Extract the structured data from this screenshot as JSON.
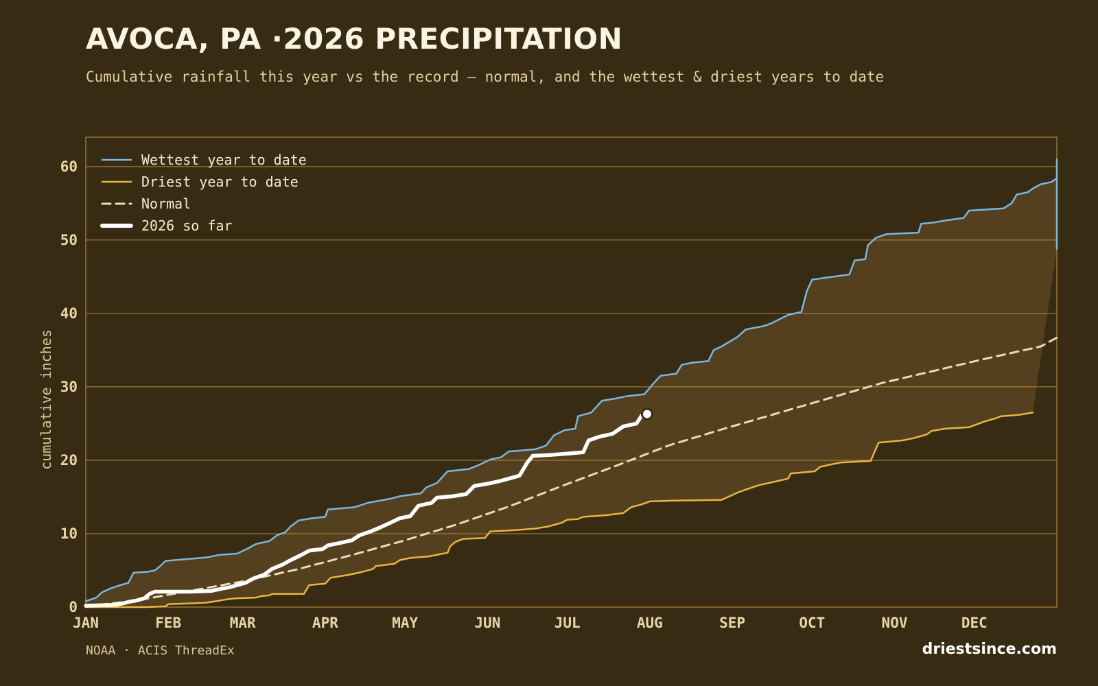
{
  "header": {
    "title": "AVOCA, PA ·2026 PRECIPITATION",
    "subtitle": "Cumulative rainfall this year vs the record — normal, and the wettest & driest years to date"
  },
  "footer": {
    "source": "NOAA · ACIS ThreadEx",
    "site": "driestsince.com"
  },
  "colors": {
    "background": "#382b13",
    "band_fill": "#55411f",
    "grid": "#c89b3c",
    "wettest": "#7ab7e0",
    "driest": "#e8b640",
    "normal": "#eadcb4",
    "current": "#ffffff"
  },
  "chart_data": {
    "type": "line",
    "ylabel": "cumulative inches",
    "xlabel": "",
    "ylim": [
      0,
      64
    ],
    "xlim_day": [
      1,
      366
    ],
    "yticks": [
      0,
      10,
      20,
      30,
      40,
      50,
      60
    ],
    "month_ticks": [
      {
        "label": "JAN",
        "day": 1
      },
      {
        "label": "FEB",
        "day": 32
      },
      {
        "label": "MAR",
        "day": 60
      },
      {
        "label": "APR",
        "day": 91
      },
      {
        "label": "MAY",
        "day": 121
      },
      {
        "label": "JUN",
        "day": 152
      },
      {
        "label": "JUL",
        "day": 182
      },
      {
        "label": "AUG",
        "day": 213
      },
      {
        "label": "SEP",
        "day": 244
      },
      {
        "label": "OCT",
        "day": 274
      },
      {
        "label": "NOV",
        "day": 305
      },
      {
        "label": "DEC",
        "day": 335
      }
    ],
    "grid": true,
    "legend_position": "top-left",
    "series": [
      {
        "name": "Wettest year to date",
        "style": "solid-thin",
        "points": [
          [
            1,
            0.8
          ],
          [
            5,
            1.3
          ],
          [
            7,
            2.0
          ],
          [
            10,
            2.5
          ],
          [
            14,
            3.0
          ],
          [
            17,
            3.3
          ],
          [
            19,
            4.7
          ],
          [
            24,
            4.8
          ],
          [
            27,
            5.0
          ],
          [
            29,
            5.6
          ],
          [
            31,
            6.3
          ],
          [
            41,
            6.6
          ],
          [
            47,
            6.8
          ],
          [
            51,
            7.1
          ],
          [
            58,
            7.3
          ],
          [
            62,
            8.0
          ],
          [
            65,
            8.6
          ],
          [
            70,
            9.0
          ],
          [
            73,
            9.8
          ],
          [
            76,
            10.2
          ],
          [
            78,
            11.0
          ],
          [
            81,
            11.8
          ],
          [
            86,
            12.1
          ],
          [
            91,
            12.3
          ],
          [
            92,
            13.3
          ],
          [
            102,
            13.6
          ],
          [
            107,
            14.2
          ],
          [
            116,
            14.8
          ],
          [
            119,
            15.1
          ],
          [
            127,
            15.5
          ],
          [
            129,
            16.3
          ],
          [
            133,
            16.9
          ],
          [
            137,
            18.5
          ],
          [
            145,
            18.8
          ],
          [
            149,
            19.4
          ],
          [
            153,
            20.1
          ],
          [
            157,
            20.4
          ],
          [
            160,
            21.2
          ],
          [
            170,
            21.5
          ],
          [
            174,
            22.0
          ],
          [
            177,
            23.4
          ],
          [
            181,
            24.1
          ],
          [
            185,
            24.3
          ],
          [
            186,
            26.0
          ],
          [
            191,
            26.5
          ],
          [
            195,
            28.1
          ],
          [
            200,
            28.4
          ],
          [
            204,
            28.7
          ],
          [
            211,
            29.0
          ],
          [
            214,
            30.3
          ],
          [
            217,
            31.5
          ],
          [
            223,
            31.8
          ],
          [
            225,
            33.0
          ],
          [
            229,
            33.3
          ],
          [
            235,
            33.5
          ],
          [
            237,
            35.0
          ],
          [
            240,
            35.5
          ],
          [
            246,
            36.8
          ],
          [
            249,
            37.8
          ],
          [
            256,
            38.3
          ],
          [
            259,
            38.7
          ],
          [
            265,
            39.8
          ],
          [
            270,
            40.2
          ],
          [
            272,
            43.0
          ],
          [
            274,
            44.6
          ],
          [
            280,
            44.9
          ],
          [
            288,
            45.3
          ],
          [
            290,
            47.2
          ],
          [
            294,
            47.4
          ],
          [
            295,
            49.3
          ],
          [
            298,
            50.3
          ],
          [
            302,
            50.8
          ],
          [
            314,
            51.0
          ],
          [
            315,
            52.2
          ],
          [
            320,
            52.4
          ],
          [
            325,
            52.7
          ],
          [
            331,
            53.0
          ],
          [
            333,
            54.0
          ],
          [
            346,
            54.3
          ],
          [
            349,
            55.0
          ],
          [
            351,
            56.2
          ],
          [
            355,
            56.5
          ],
          [
            357,
            57.0
          ],
          [
            360,
            57.6
          ],
          [
            364,
            57.9
          ],
          [
            368,
            58.4
          ],
          [
            378,
            58.7
          ],
          [
            379,
            59.4
          ],
          [
            383,
            59.7
          ],
          [
            384,
            60.1
          ],
          [
            392,
            60.4
          ],
          [
            395,
            60.8
          ],
          [
            396,
            61.0
          ],
          [
            397,
            48.8
          ]
        ]
      },
      {
        "name": "Driest year to date",
        "style": "solid-thin",
        "points": [
          [
            1,
            0.0
          ],
          [
            24,
            0.0
          ],
          [
            31,
            0.1
          ],
          [
            32,
            0.4
          ],
          [
            40,
            0.5
          ],
          [
            46,
            0.6
          ],
          [
            50,
            0.8
          ],
          [
            53,
            1.0
          ],
          [
            57,
            1.2
          ],
          [
            65,
            1.3
          ],
          [
            67,
            1.5
          ],
          [
            70,
            1.6
          ],
          [
            71,
            1.8
          ],
          [
            83,
            1.8
          ],
          [
            85,
            3.0
          ],
          [
            91,
            3.2
          ],
          [
            93,
            4.0
          ],
          [
            100,
            4.4
          ],
          [
            105,
            4.8
          ],
          [
            109,
            5.2
          ],
          [
            110,
            5.6
          ],
          [
            117,
            5.9
          ],
          [
            119,
            6.4
          ],
          [
            123,
            6.7
          ],
          [
            130,
            6.9
          ],
          [
            134,
            7.2
          ],
          [
            137,
            7.4
          ],
          [
            138,
            8.3
          ],
          [
            140,
            8.9
          ],
          [
            143,
            9.3
          ],
          [
            151,
            9.4
          ],
          [
            153,
            10.3
          ],
          [
            163,
            10.5
          ],
          [
            170,
            10.7
          ],
          [
            175,
            11.0
          ],
          [
            180,
            11.5
          ],
          [
            182,
            11.9
          ],
          [
            186,
            12.0
          ],
          [
            188,
            12.3
          ],
          [
            196,
            12.5
          ],
          [
            203,
            12.8
          ],
          [
            206,
            13.6
          ],
          [
            210,
            14.0
          ],
          [
            213,
            14.4
          ],
          [
            222,
            14.5
          ],
          [
            240,
            14.6
          ],
          [
            243,
            15.1
          ],
          [
            246,
            15.6
          ],
          [
            249,
            16.0
          ],
          [
            254,
            16.6
          ],
          [
            259,
            17.0
          ],
          [
            265,
            17.5
          ],
          [
            266,
            18.2
          ],
          [
            275,
            18.5
          ],
          [
            277,
            19.1
          ],
          [
            282,
            19.5
          ],
          [
            285,
            19.7
          ],
          [
            296,
            19.9
          ],
          [
            299,
            22.4
          ],
          [
            308,
            22.7
          ],
          [
            312,
            23.0
          ],
          [
            317,
            23.5
          ],
          [
            319,
            24.0
          ],
          [
            324,
            24.3
          ],
          [
            333,
            24.5
          ],
          [
            339,
            25.3
          ],
          [
            343,
            25.7
          ],
          [
            345,
            26.0
          ],
          [
            349,
            26.1
          ],
          [
            352,
            26.2
          ],
          [
            357,
            26.5
          ]
        ]
      },
      {
        "name": "Normal",
        "style": "dashed",
        "points": [
          [
            1,
            0.1
          ],
          [
            20,
            0.9
          ],
          [
            40,
            2.2
          ],
          [
            60,
            3.5
          ],
          [
            80,
            5.1
          ],
          [
            100,
            7.0
          ],
          [
            120,
            9.0
          ],
          [
            140,
            11.2
          ],
          [
            160,
            13.7
          ],
          [
            180,
            16.5
          ],
          [
            200,
            19.2
          ],
          [
            220,
            22.0
          ],
          [
            240,
            24.2
          ],
          [
            260,
            26.3
          ],
          [
            280,
            28.4
          ],
          [
            300,
            30.5
          ],
          [
            320,
            32.2
          ],
          [
            340,
            33.9
          ],
          [
            360,
            35.5
          ],
          [
            380,
            36.7
          ],
          [
            397,
            37.3
          ]
        ]
      },
      {
        "name": "2026 so far",
        "style": "solid-thick",
        "points": [
          [
            1,
            0.2
          ],
          [
            12,
            0.3
          ],
          [
            15,
            0.5
          ],
          [
            17,
            0.7
          ],
          [
            20,
            0.9
          ],
          [
            23,
            1.2
          ],
          [
            25,
            1.8
          ],
          [
            27,
            2.1
          ],
          [
            40,
            2.1
          ],
          [
            48,
            2.2
          ],
          [
            52,
            2.5
          ],
          [
            55,
            2.7
          ],
          [
            58,
            3.0
          ],
          [
            61,
            3.3
          ],
          [
            64,
            3.9
          ],
          [
            68,
            4.4
          ],
          [
            71,
            5.2
          ],
          [
            75,
            5.8
          ],
          [
            78,
            6.4
          ],
          [
            82,
            7.1
          ],
          [
            85,
            7.7
          ],
          [
            90,
            7.9
          ],
          [
            92,
            8.4
          ],
          [
            96,
            8.7
          ],
          [
            101,
            9.1
          ],
          [
            104,
            9.8
          ],
          [
            108,
            10.3
          ],
          [
            112,
            10.9
          ],
          [
            115,
            11.4
          ],
          [
            119,
            12.1
          ],
          [
            123,
            12.4
          ],
          [
            126,
            13.8
          ],
          [
            131,
            14.2
          ],
          [
            133,
            14.9
          ],
          [
            139,
            15.1
          ],
          [
            144,
            15.4
          ],
          [
            147,
            16.5
          ],
          [
            152,
            16.8
          ],
          [
            157,
            17.2
          ],
          [
            160,
            17.5
          ],
          [
            164,
            17.9
          ],
          [
            167,
            19.7
          ],
          [
            169,
            20.6
          ],
          [
            175,
            20.7
          ],
          [
            182,
            20.9
          ],
          [
            188,
            21.1
          ],
          [
            190,
            22.7
          ],
          [
            194,
            23.2
          ],
          [
            199,
            23.6
          ],
          [
            203,
            24.6
          ],
          [
            208,
            25.0
          ],
          [
            210,
            26.1
          ]
        ]
      }
    ],
    "current_marker": {
      "label": "",
      "day": 212,
      "value": 26.3
    }
  }
}
